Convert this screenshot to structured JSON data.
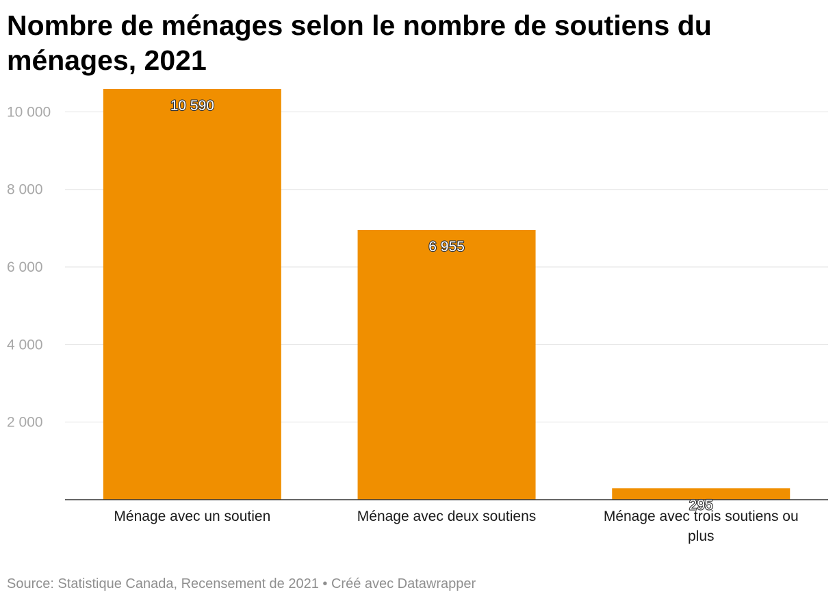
{
  "chart_data": {
    "type": "bar",
    "title": "Nombre de ménages selon le nombre de soutiens du ménages, 2021",
    "categories": [
      [
        "Ménage avec un soutien"
      ],
      [
        "Ménage avec deux soutiens"
      ],
      [
        "Ménage avec trois soutiens ou",
        "plus"
      ]
    ],
    "values": [
      10590,
      6955,
      295
    ],
    "value_labels": [
      "10 590",
      "6 955",
      "295"
    ],
    "yticks": [
      2000,
      4000,
      6000,
      8000,
      10000
    ],
    "ytick_labels": [
      "2 000",
      "4 000",
      "6 000",
      "8 000",
      "10 000"
    ],
    "ylim": [
      0,
      10590
    ],
    "grid": true,
    "bar_color": "#f08f00",
    "xlabel": "",
    "ylabel": ""
  },
  "footer": {
    "source": "Source: Statistique Canada, Recensement de 2021 • Créé avec Datawrapper"
  }
}
